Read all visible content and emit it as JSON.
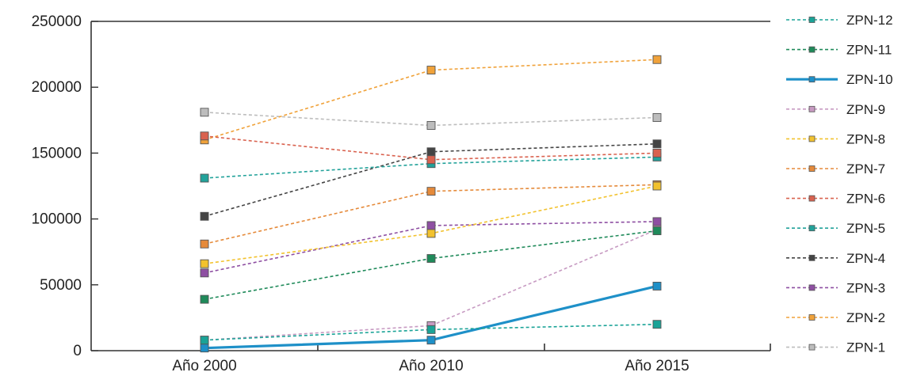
{
  "chart_data": {
    "type": "line",
    "categories": [
      "Año 2000",
      "Año 2010",
      "Año 2015"
    ],
    "ylim": [
      0,
      250000
    ],
    "yticks": [
      0,
      50000,
      100000,
      150000,
      200000,
      250000
    ],
    "ytick_labels": [
      "0",
      "50000",
      "100000",
      "150000",
      "200000",
      "250000"
    ],
    "grid": false,
    "legend_position": "right",
    "series": [
      {
        "name": "ZPN-12",
        "color": "#1aa397",
        "line": "dashed",
        "values": [
          8000,
          16000,
          20000
        ]
      },
      {
        "name": "ZPN-11",
        "color": "#1f8a5a",
        "line": "dashed",
        "values": [
          39000,
          70000,
          91000
        ]
      },
      {
        "name": "ZPN-10",
        "color": "#1e90c8",
        "line": "solid",
        "values": [
          2000,
          8000,
          49000
        ]
      },
      {
        "name": "ZPN-9",
        "color": "#c79ac2",
        "line": "dashed",
        "values": [
          8000,
          19000,
          92000
        ]
      },
      {
        "name": "ZPN-8",
        "color": "#f2c22e",
        "line": "dashed",
        "values": [
          66000,
          89000,
          125000
        ]
      },
      {
        "name": "ZPN-7",
        "color": "#e58a3a",
        "line": "dashed",
        "values": [
          81000,
          121000,
          126000
        ]
      },
      {
        "name": "ZPN-6",
        "color": "#d9624f",
        "line": "dashed",
        "values": [
          163000,
          145000,
          150000
        ]
      },
      {
        "name": "ZPN-5",
        "color": "#22a29a",
        "line": "dashed",
        "values": [
          131000,
          142000,
          147000
        ]
      },
      {
        "name": "ZPN-4",
        "color": "#444444",
        "line": "dashed",
        "values": [
          102000,
          151000,
          157000
        ]
      },
      {
        "name": "ZPN-3",
        "color": "#8e4fa2",
        "line": "dashed",
        "values": [
          59000,
          95000,
          98000
        ]
      },
      {
        "name": "ZPN-2",
        "color": "#f0a23a",
        "line": "dashed",
        "values": [
          160000,
          213000,
          221000
        ]
      },
      {
        "name": "ZPN-1",
        "color": "#bdbdbd",
        "line": "dashed",
        "values": [
          181000,
          171000,
          177000
        ]
      }
    ]
  }
}
